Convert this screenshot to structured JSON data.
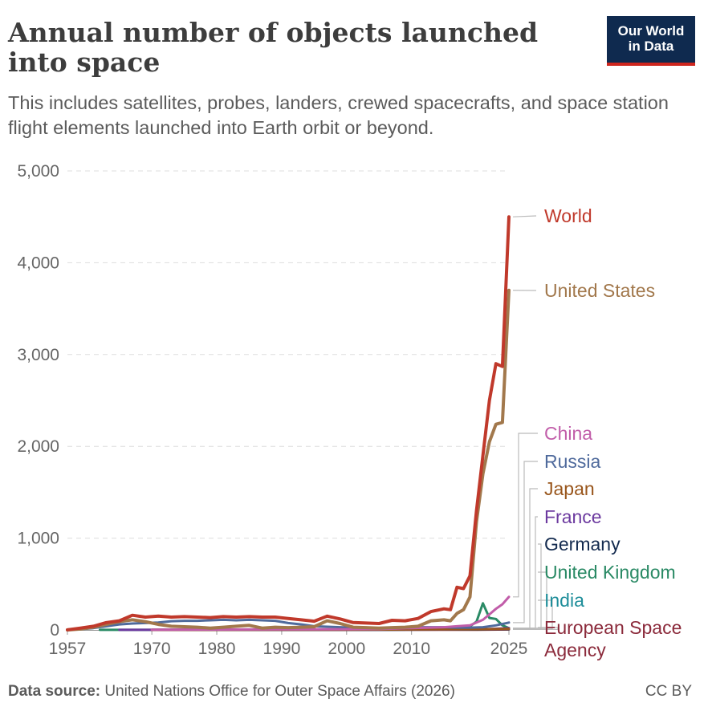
{
  "header": {
    "title": "Annual number of objects launched into space",
    "subtitle": "This includes satellites, probes, landers, crewed spacecrafts, and space station flight elements launched into Earth orbit or beyond."
  },
  "logo": {
    "line1": "Our World",
    "line2": "in Data"
  },
  "footer": {
    "source_label": "Data source:",
    "source_text": "United Nations Office for Outer Space Affairs (2026)",
    "license": "CC BY"
  },
  "chart_data": {
    "type": "line",
    "title": "Annual number of objects launched into space",
    "xlim": [
      1957,
      2025
    ],
    "ylim": [
      0,
      5000
    ],
    "grid": true,
    "legend_placement": "right",
    "x_ticks": [
      "1957",
      "1970",
      "1980",
      "1990",
      "2000",
      "2010",
      "2025"
    ],
    "y_ticks": [
      "0",
      "1,000",
      "2,000",
      "3,000",
      "4,000",
      "5,000"
    ],
    "y_tick_values": [
      0,
      1000,
      2000,
      3000,
      4000,
      5000
    ],
    "series": [
      {
        "name": "World",
        "color": "#c0392b",
        "width": 4,
        "points": [
          [
            1957,
            2
          ],
          [
            1959,
            20
          ],
          [
            1961,
            40
          ],
          [
            1963,
            80
          ],
          [
            1965,
            100
          ],
          [
            1967,
            160
          ],
          [
            1969,
            140
          ],
          [
            1971,
            150
          ],
          [
            1973,
            140
          ],
          [
            1975,
            145
          ],
          [
            1977,
            140
          ],
          [
            1979,
            135
          ],
          [
            1981,
            145
          ],
          [
            1983,
            140
          ],
          [
            1985,
            145
          ],
          [
            1987,
            140
          ],
          [
            1989,
            140
          ],
          [
            1991,
            125
          ],
          [
            1993,
            110
          ],
          [
            1995,
            95
          ],
          [
            1997,
            150
          ],
          [
            1999,
            120
          ],
          [
            2001,
            80
          ],
          [
            2003,
            75
          ],
          [
            2005,
            70
          ],
          [
            2007,
            105
          ],
          [
            2009,
            100
          ],
          [
            2011,
            125
          ],
          [
            2013,
            200
          ],
          [
            2015,
            230
          ],
          [
            2016,
            220
          ],
          [
            2017,
            465
          ],
          [
            2018,
            450
          ],
          [
            2019,
            590
          ],
          [
            2020,
            1300
          ],
          [
            2021,
            1900
          ],
          [
            2022,
            2500
          ],
          [
            2023,
            2900
          ],
          [
            2024,
            2870
          ],
          [
            2025,
            4500
          ]
        ]
      },
      {
        "name": "United States",
        "color": "#a2784c",
        "width": 4,
        "points": [
          [
            1957,
            0
          ],
          [
            1959,
            10
          ],
          [
            1961,
            30
          ],
          [
            1963,
            60
          ],
          [
            1965,
            90
          ],
          [
            1967,
            110
          ],
          [
            1969,
            90
          ],
          [
            1971,
            60
          ],
          [
            1973,
            40
          ],
          [
            1975,
            35
          ],
          [
            1977,
            30
          ],
          [
            1979,
            20
          ],
          [
            1981,
            30
          ],
          [
            1983,
            40
          ],
          [
            1985,
            50
          ],
          [
            1987,
            20
          ],
          [
            1989,
            30
          ],
          [
            1991,
            25
          ],
          [
            1993,
            30
          ],
          [
            1995,
            35
          ],
          [
            1997,
            100
          ],
          [
            1999,
            70
          ],
          [
            2001,
            30
          ],
          [
            2003,
            25
          ],
          [
            2005,
            20
          ],
          [
            2007,
            25
          ],
          [
            2009,
            30
          ],
          [
            2011,
            40
          ],
          [
            2013,
            100
          ],
          [
            2015,
            110
          ],
          [
            2016,
            100
          ],
          [
            2017,
            180
          ],
          [
            2018,
            220
          ],
          [
            2019,
            360
          ],
          [
            2020,
            1180
          ],
          [
            2021,
            1700
          ],
          [
            2022,
            2050
          ],
          [
            2023,
            2240
          ],
          [
            2024,
            2260
          ],
          [
            2025,
            3700
          ]
        ]
      },
      {
        "name": "China",
        "color": "#c15da9",
        "width": 3,
        "points": [
          [
            1970,
            2
          ],
          [
            1980,
            4
          ],
          [
            1990,
            6
          ],
          [
            2000,
            8
          ],
          [
            2005,
            10
          ],
          [
            2010,
            20
          ],
          [
            2015,
            30
          ],
          [
            2017,
            40
          ],
          [
            2019,
            50
          ],
          [
            2020,
            80
          ],
          [
            2021,
            110
          ],
          [
            2022,
            170
          ],
          [
            2023,
            230
          ],
          [
            2024,
            280
          ],
          [
            2025,
            360
          ]
        ]
      },
      {
        "name": "Russia",
        "color": "#4f6a9c",
        "width": 3,
        "points": [
          [
            1957,
            2
          ],
          [
            1959,
            8
          ],
          [
            1961,
            20
          ],
          [
            1963,
            40
          ],
          [
            1965,
            60
          ],
          [
            1967,
            70
          ],
          [
            1969,
            75
          ],
          [
            1971,
            80
          ],
          [
            1973,
            95
          ],
          [
            1975,
            100
          ],
          [
            1977,
            100
          ],
          [
            1979,
            105
          ],
          [
            1981,
            110
          ],
          [
            1983,
            105
          ],
          [
            1985,
            110
          ],
          [
            1987,
            105
          ],
          [
            1989,
            100
          ],
          [
            1991,
            75
          ],
          [
            1993,
            60
          ],
          [
            1995,
            40
          ],
          [
            1997,
            35
          ],
          [
            1999,
            30
          ],
          [
            2001,
            25
          ],
          [
            2003,
            22
          ],
          [
            2005,
            22
          ],
          [
            2007,
            25
          ],
          [
            2009,
            25
          ],
          [
            2011,
            30
          ],
          [
            2013,
            30
          ],
          [
            2015,
            30
          ],
          [
            2017,
            25
          ],
          [
            2019,
            25
          ],
          [
            2021,
            30
          ],
          [
            2023,
            50
          ],
          [
            2025,
            80
          ]
        ]
      },
      {
        "name": "Japan",
        "color": "#99561c",
        "width": 3,
        "points": [
          [
            1970,
            1
          ],
          [
            1990,
            3
          ],
          [
            2000,
            3
          ],
          [
            2010,
            5
          ],
          [
            2020,
            8
          ],
          [
            2025,
            12
          ]
        ]
      },
      {
        "name": "France",
        "color": "#6c3a9f",
        "width": 3,
        "points": [
          [
            1965,
            1
          ],
          [
            1990,
            2
          ],
          [
            2000,
            2
          ],
          [
            2015,
            5
          ],
          [
            2022,
            10
          ],
          [
            2025,
            20
          ]
        ]
      },
      {
        "name": "Germany",
        "color": "#142b4f",
        "width": 3,
        "points": [
          [
            1970,
            1
          ],
          [
            2000,
            2
          ],
          [
            2020,
            5
          ],
          [
            2025,
            10
          ]
        ]
      },
      {
        "name": "United Kingdom",
        "color": "#2a8a65",
        "width": 3,
        "points": [
          [
            1962,
            1
          ],
          [
            2000,
            2
          ],
          [
            2015,
            5
          ],
          [
            2018,
            8
          ],
          [
            2019,
            40
          ],
          [
            2020,
            90
          ],
          [
            2021,
            290
          ],
          [
            2022,
            130
          ],
          [
            2023,
            120
          ],
          [
            2024,
            50
          ],
          [
            2025,
            20
          ]
        ]
      },
      {
        "name": "India",
        "color": "#1f8e9a",
        "width": 3,
        "points": [
          [
            1975,
            1
          ],
          [
            2000,
            2
          ],
          [
            2015,
            5
          ],
          [
            2020,
            8
          ],
          [
            2025,
            10
          ]
        ]
      },
      {
        "name": "European Space Agency",
        "color": "#8b2a3b",
        "width": 3,
        "points": [
          [
            1970,
            1
          ],
          [
            2000,
            2
          ],
          [
            2020,
            3
          ],
          [
            2025,
            5
          ]
        ]
      }
    ]
  }
}
